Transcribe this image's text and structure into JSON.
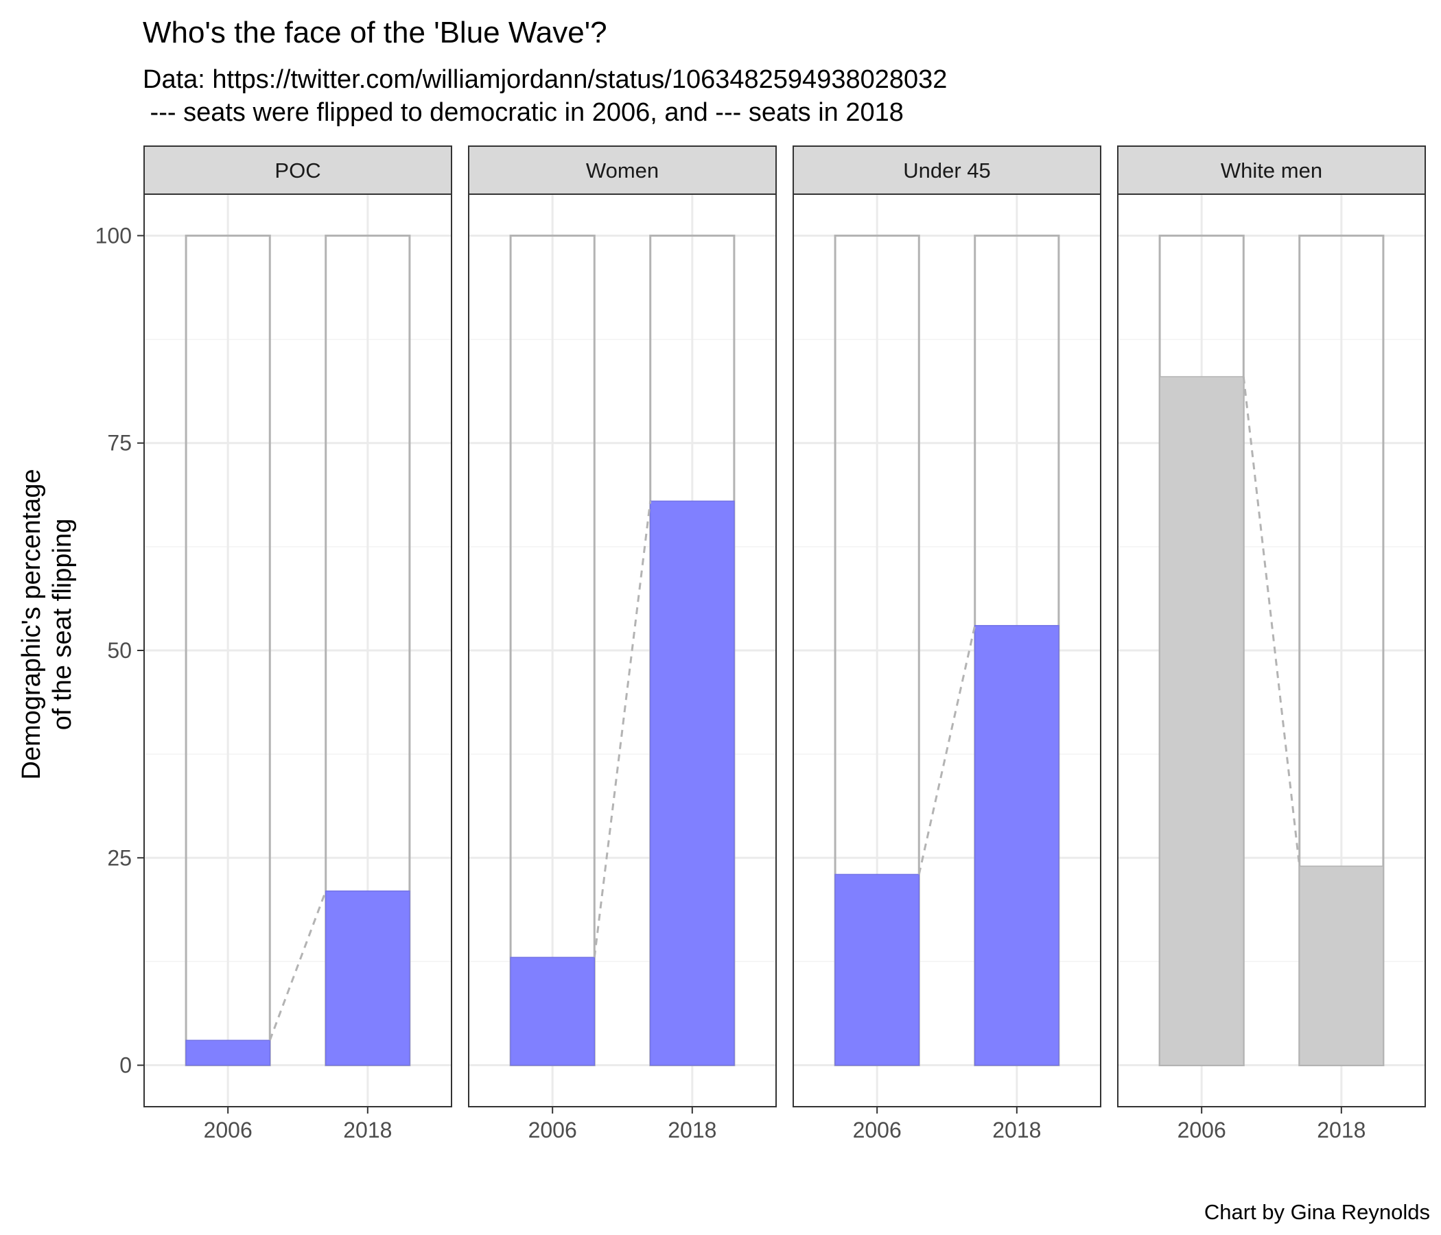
{
  "title": "Who's the face of the 'Blue Wave'?",
  "subtitle_lines": [
    "Data: https://twitter.com/williamjordann/status/1063482594938028032",
    " --- seats were flipped to democratic in 2006, and --- seats in 2018"
  ],
  "caption": "Chart by Gina Reynolds",
  "colors": {
    "highlight": "#8080ff",
    "highlight_stroke": "#7373e6",
    "neutral": "#cccccc",
    "outline": "#b3b3b3",
    "connector": "#b3b3b3",
    "grid_major": "#ebebeb",
    "grid_minor": "#f3f3f3",
    "strip_fill": "#d9d9d9",
    "panel_border": "#333333"
  },
  "chart_data": {
    "type": "bar",
    "facet_by": "demographic",
    "categories": [
      "2006",
      "2018"
    ],
    "ylabel_lines": [
      "Demographic's percentage",
      "of the seat flipping"
    ],
    "ylim": [
      -5,
      105
    ],
    "yticks": [
      0,
      25,
      50,
      75,
      100
    ],
    "background_value": 100,
    "grid": true,
    "facets": [
      {
        "name": "POC",
        "values": [
          3,
          21
        ],
        "highlight": true
      },
      {
        "name": "Women",
        "values": [
          13,
          68
        ],
        "highlight": true
      },
      {
        "name": "Under 45",
        "values": [
          23,
          53
        ],
        "highlight": true
      },
      {
        "name": "White men",
        "values": [
          83,
          24
        ],
        "highlight": false
      }
    ]
  }
}
